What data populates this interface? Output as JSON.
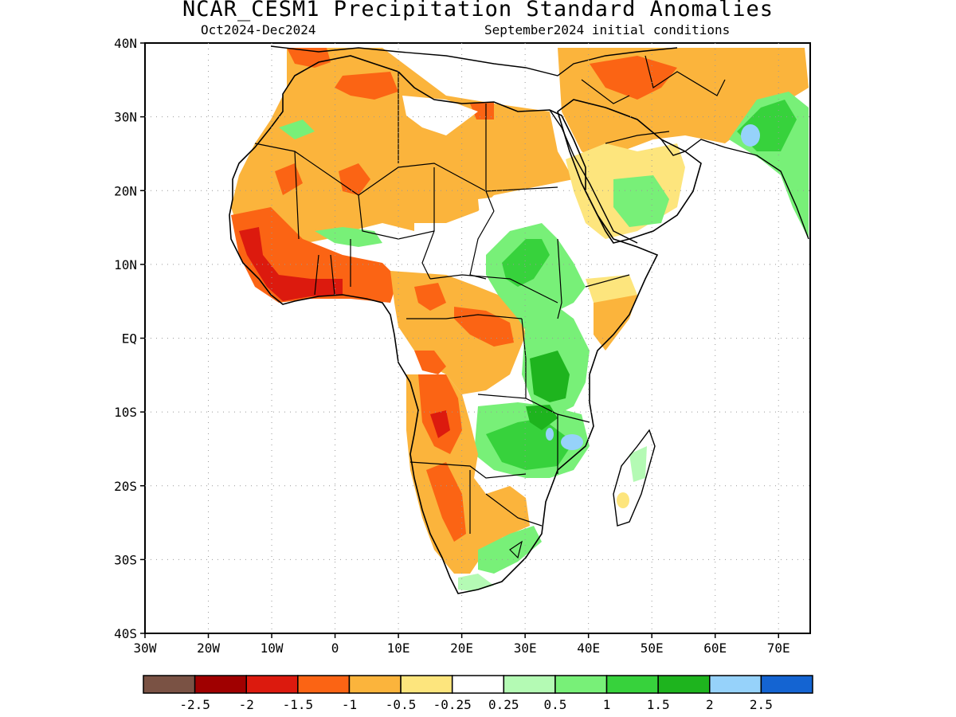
{
  "title": "NCAR_CESM1 Precipitation Standard Anomalies",
  "period": "Oct2024-Dec2024",
  "initial_conditions": "September2024 initial conditions",
  "map": {
    "region": "Africa",
    "projection": "latitude-longitude",
    "lon_range": [
      -30,
      75
    ],
    "lat_range": [
      -40,
      40
    ],
    "grid": true,
    "lat_labels": [
      "40N",
      "30N",
      "20N",
      "10N",
      "EQ",
      "10S",
      "20S",
      "30S",
      "40S"
    ],
    "lon_labels": [
      "30W",
      "20W",
      "10W",
      "0",
      "10E",
      "20E",
      "30E",
      "40E",
      "50E",
      "60E",
      "70E"
    ]
  },
  "colorbar": {
    "labels": [
      "-2.5",
      "-2",
      "-1.5",
      "-1",
      "-0.5",
      "-0.25",
      "0.25",
      "0.5",
      "1",
      "1.5",
      "2",
      "2.5"
    ],
    "colors": [
      "#7a5244",
      "#a00000",
      "#dc1a0e",
      "#fb6414",
      "#fbb43c",
      "#fde57d",
      "#ffffff",
      "#b4fab4",
      "#78f078",
      "#37d23c",
      "#1eb41e",
      "#96d2fa",
      "#1464d2"
    ]
  },
  "anomaly_regions": [
    {
      "region": "Gulf of Guinea coast",
      "category": "-2 to -1.5"
    },
    {
      "region": "West Sahara / Mauritania",
      "category": "-1.5 to -1"
    },
    {
      "region": "Sahara (Algeria, Libya, Niger, Chad)",
      "category": "-1 to -0.5"
    },
    {
      "region": "Angola / Zambia west",
      "category": "-1.5 to -1"
    },
    {
      "region": "Namibia / Botswana",
      "category": "-1 to -0.5"
    },
    {
      "region": "Central African Republic / South Sudan",
      "category": "-1 to -0.5"
    },
    {
      "region": "Ethiopian Highlands",
      "category": "0.5 to 1.5"
    },
    {
      "region": "East Africa Lakes / Tanzania",
      "category": "1 to 2"
    },
    {
      "region": "Mozambique / Malawi",
      "category": "1 to 2.5"
    },
    {
      "region": "Arabian Peninsula south",
      "category": "0.5 to 1"
    },
    {
      "region": "Pakistan / Northwest India",
      "category": "1 to 2.5"
    },
    {
      "region": "Madagascar",
      "category": "-0.25 to 0.5"
    },
    {
      "region": "Southern Africa south coast",
      "category": "0.25 to 0.5"
    }
  ]
}
